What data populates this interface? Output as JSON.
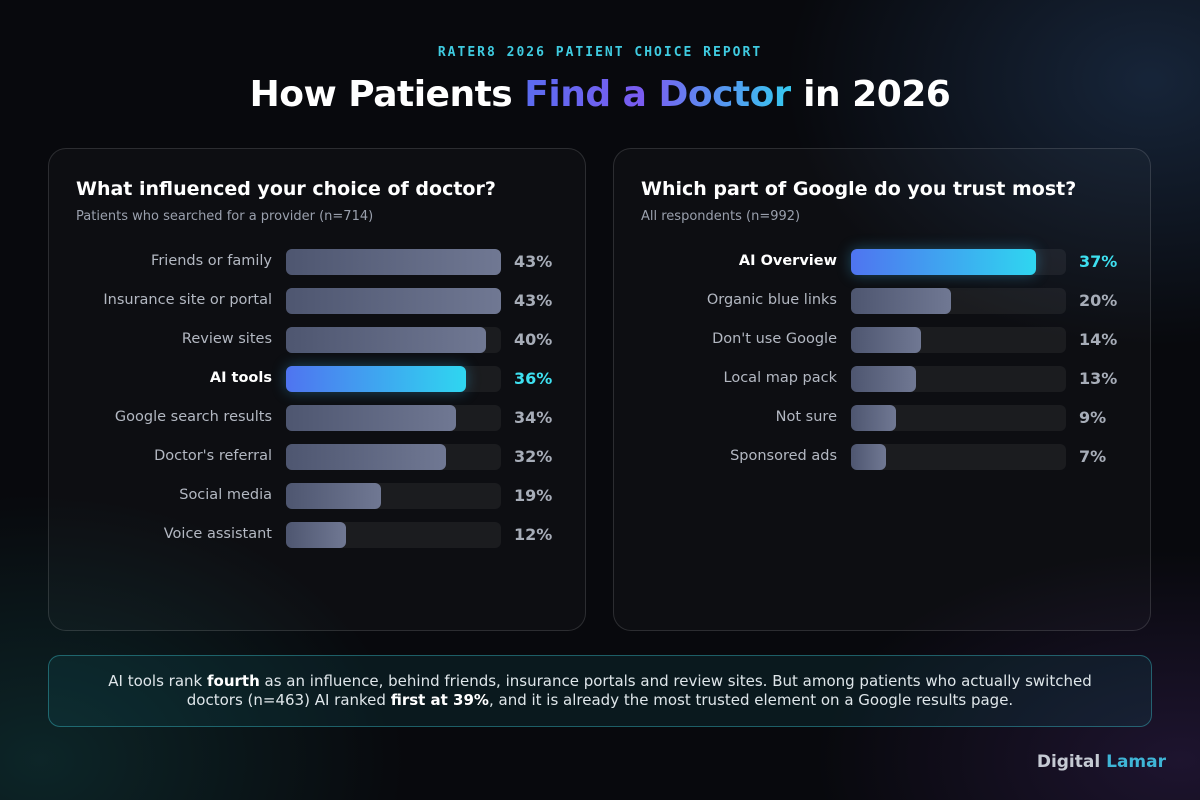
{
  "header": {
    "eyebrow": "RATER8 2026 PATIENT CHOICE REPORT",
    "title_pre": "How Patients ",
    "title_highlight": "Find a Doctor",
    "title_post": " in 2026"
  },
  "chart_data": [
    {
      "type": "bar",
      "orientation": "horizontal",
      "title": "What influenced your choice of doctor?",
      "subtitle": "Patients who searched for a provider (n=714)",
      "unit": "%",
      "xlim": [
        0,
        43
      ],
      "categories": [
        "Friends or family",
        "Insurance site or portal",
        "Review sites",
        "AI tools",
        "Google search results",
        "Doctor's referral",
        "Social media",
        "Voice assistant"
      ],
      "values": [
        43,
        43,
        40,
        36,
        34,
        32,
        19,
        12
      ],
      "value_labels": [
        "43%",
        "43%",
        "40%",
        "36%",
        "34%",
        "32%",
        "19%",
        "12%"
      ],
      "highlight": "AI tools",
      "highlight_color": "#36c9f0"
    },
    {
      "type": "bar",
      "orientation": "horizontal",
      "title": "Which part of Google do you trust most?",
      "subtitle": "All respondents (n=992)",
      "unit": "%",
      "xlim": [
        0,
        43
      ],
      "categories": [
        "AI Overview",
        "Organic blue links",
        "Don't use Google",
        "Local map pack",
        "Not sure",
        "Sponsored ads"
      ],
      "values": [
        37,
        20,
        14,
        13,
        9,
        7
      ],
      "value_labels": [
        "37%",
        "20%",
        "14%",
        "13%",
        "9%",
        "7%"
      ],
      "highlight": "AI Overview",
      "highlight_color": "#36c9f0"
    }
  ],
  "callout": {
    "t1": "AI tools rank ",
    "b1": "fourth",
    "t2": " as an influence, behind friends, insurance portals and review sites. But among patients who actually switched doctors (n=463) AI ranked ",
    "b2": "first at 39%",
    "t3": ", and it is already the most trusted element on a Google results page."
  },
  "brand": {
    "part1": "Digital",
    "part2": " Lamar"
  }
}
